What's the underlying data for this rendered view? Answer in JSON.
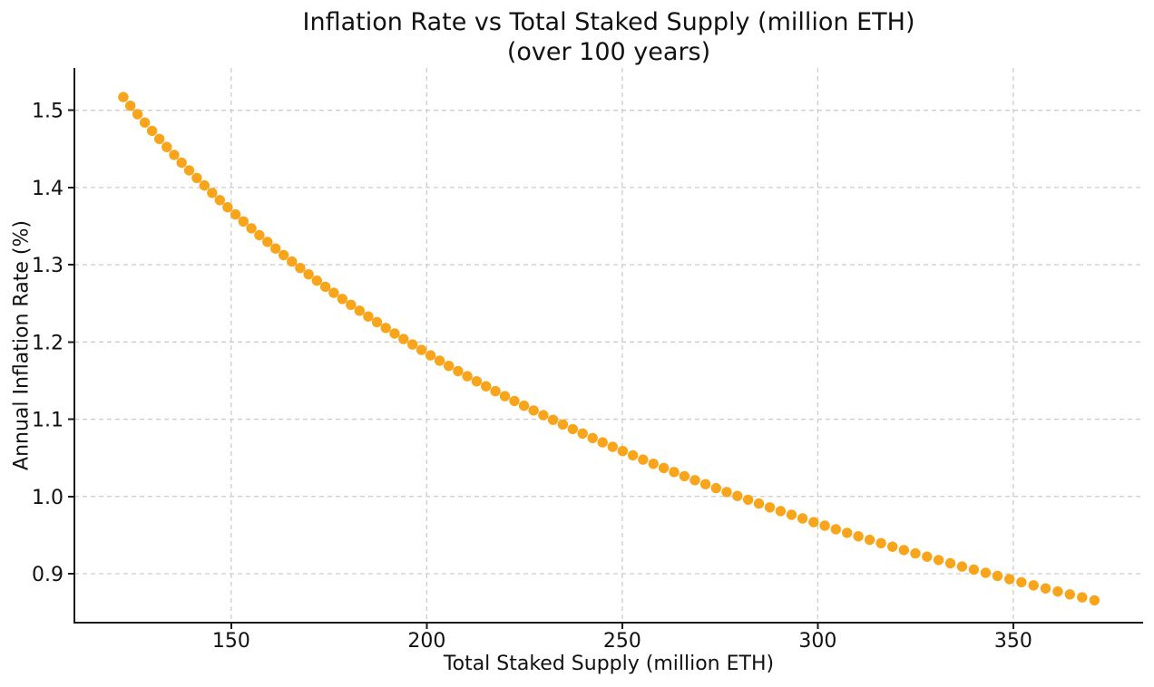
{
  "page": {
    "background_color": "#ffffff",
    "text_color": "#111111"
  },
  "chart_data": {
    "type": "scatter",
    "title": "Inflation Rate vs Total Staked Supply (million ETH)",
    "subtitle": "(over 100 years)",
    "xlabel": "Total Staked Supply (million ETH)",
    "ylabel": "Annual Inflation Rate (%)",
    "xlim": [
      109.9,
      383.2
    ],
    "ylim": [
      0.8366,
      1.5548
    ],
    "xtick_labels": [
      "150",
      "200",
      "250",
      "300",
      "350"
    ],
    "ytick_labels": [
      "0.9",
      "1.0",
      "1.1",
      "1.2",
      "1.3",
      "1.4",
      "1.5"
    ],
    "grid": true,
    "grid_style": "dashed",
    "grid_color": "#cccccc",
    "spine_color": "#1a1a1a",
    "legend": "none",
    "marker_color": "#F9A51B",
    "marker_radius": 5.7,
    "series": [
      {
        "name": "Annual inflation rate (%)",
        "x": [
          122.4,
          124.22,
          126.05,
          127.9,
          129.76,
          131.63,
          133.52,
          135.42,
          137.33,
          139.26,
          141.2,
          143.15,
          145.12,
          147.1,
          149.09,
          151.1,
          153.12,
          155.16,
          157.21,
          159.27,
          161.34,
          163.43,
          165.53,
          167.65,
          169.77,
          171.92,
          174.07,
          176.24,
          178.42,
          180.62,
          182.83,
          185.05,
          187.28,
          189.53,
          191.8,
          194.07,
          196.36,
          198.66,
          200.98,
          203.31,
          205.65,
          208.01,
          210.38,
          212.76,
          215.16,
          217.57,
          219.99,
          222.43,
          224.88,
          227.35,
          229.82,
          232.31,
          234.82,
          237.34,
          239.87,
          242.41,
          244.97,
          247.54,
          250.12,
          252.72,
          255.33,
          257.96,
          260.6,
          263.25,
          265.91,
          268.59,
          271.28,
          273.99,
          276.71,
          279.44,
          282.19,
          284.94,
          287.72,
          290.5,
          293.3,
          296.11,
          298.94,
          301.78,
          304.63,
          307.5,
          310.37,
          313.27,
          316.17,
          319.09,
          322.02,
          324.97,
          327.93,
          330.9,
          333.89,
          336.89,
          339.9,
          342.93,
          345.97,
          349.02,
          352.09,
          355.17,
          358.26,
          361.37,
          364.48,
          367.62,
          370.76
        ],
        "y": [
          1.5171,
          1.5059,
          1.4949,
          1.4841,
          1.4734,
          1.4629,
          1.4525,
          1.4423,
          1.4322,
          1.4222,
          1.4124,
          1.4027,
          1.3931,
          1.3837,
          1.3744,
          1.3652,
          1.3561,
          1.3472,
          1.3383,
          1.3296,
          1.321,
          1.3125,
          1.3041,
          1.2958,
          1.2876,
          1.2795,
          1.2715,
          1.2636,
          1.2558,
          1.2481,
          1.2405,
          1.233,
          1.2256,
          1.2182,
          1.211,
          1.2038,
          1.1967,
          1.1897,
          1.1827,
          1.1758,
          1.1691,
          1.1623,
          1.1557,
          1.1491,
          1.1427,
          1.1363,
          1.1299,
          1.1237,
          1.1175,
          1.1113,
          1.1052,
          1.0992,
          1.0932,
          1.0873,
          1.0815,
          1.0757,
          1.07,
          1.0643,
          1.0587,
          1.0532,
          1.0477,
          1.0423,
          1.0369,
          1.0316,
          1.0263,
          1.0211,
          1.0159,
          1.0108,
          1.0057,
          1.0007,
          0.9957,
          0.9908,
          0.9859,
          0.9811,
          0.9763,
          0.9715,
          0.9668,
          0.9622,
          0.9575,
          0.9529,
          0.9484,
          0.9439,
          0.9395,
          0.935,
          0.9306,
          0.9263,
          0.922,
          0.9177,
          0.9135,
          0.9093,
          0.9052,
          0.9011,
          0.897,
          0.8929,
          0.8889,
          0.8849,
          0.881,
          0.877,
          0.8732,
          0.8693,
          0.8655
        ]
      }
    ]
  }
}
